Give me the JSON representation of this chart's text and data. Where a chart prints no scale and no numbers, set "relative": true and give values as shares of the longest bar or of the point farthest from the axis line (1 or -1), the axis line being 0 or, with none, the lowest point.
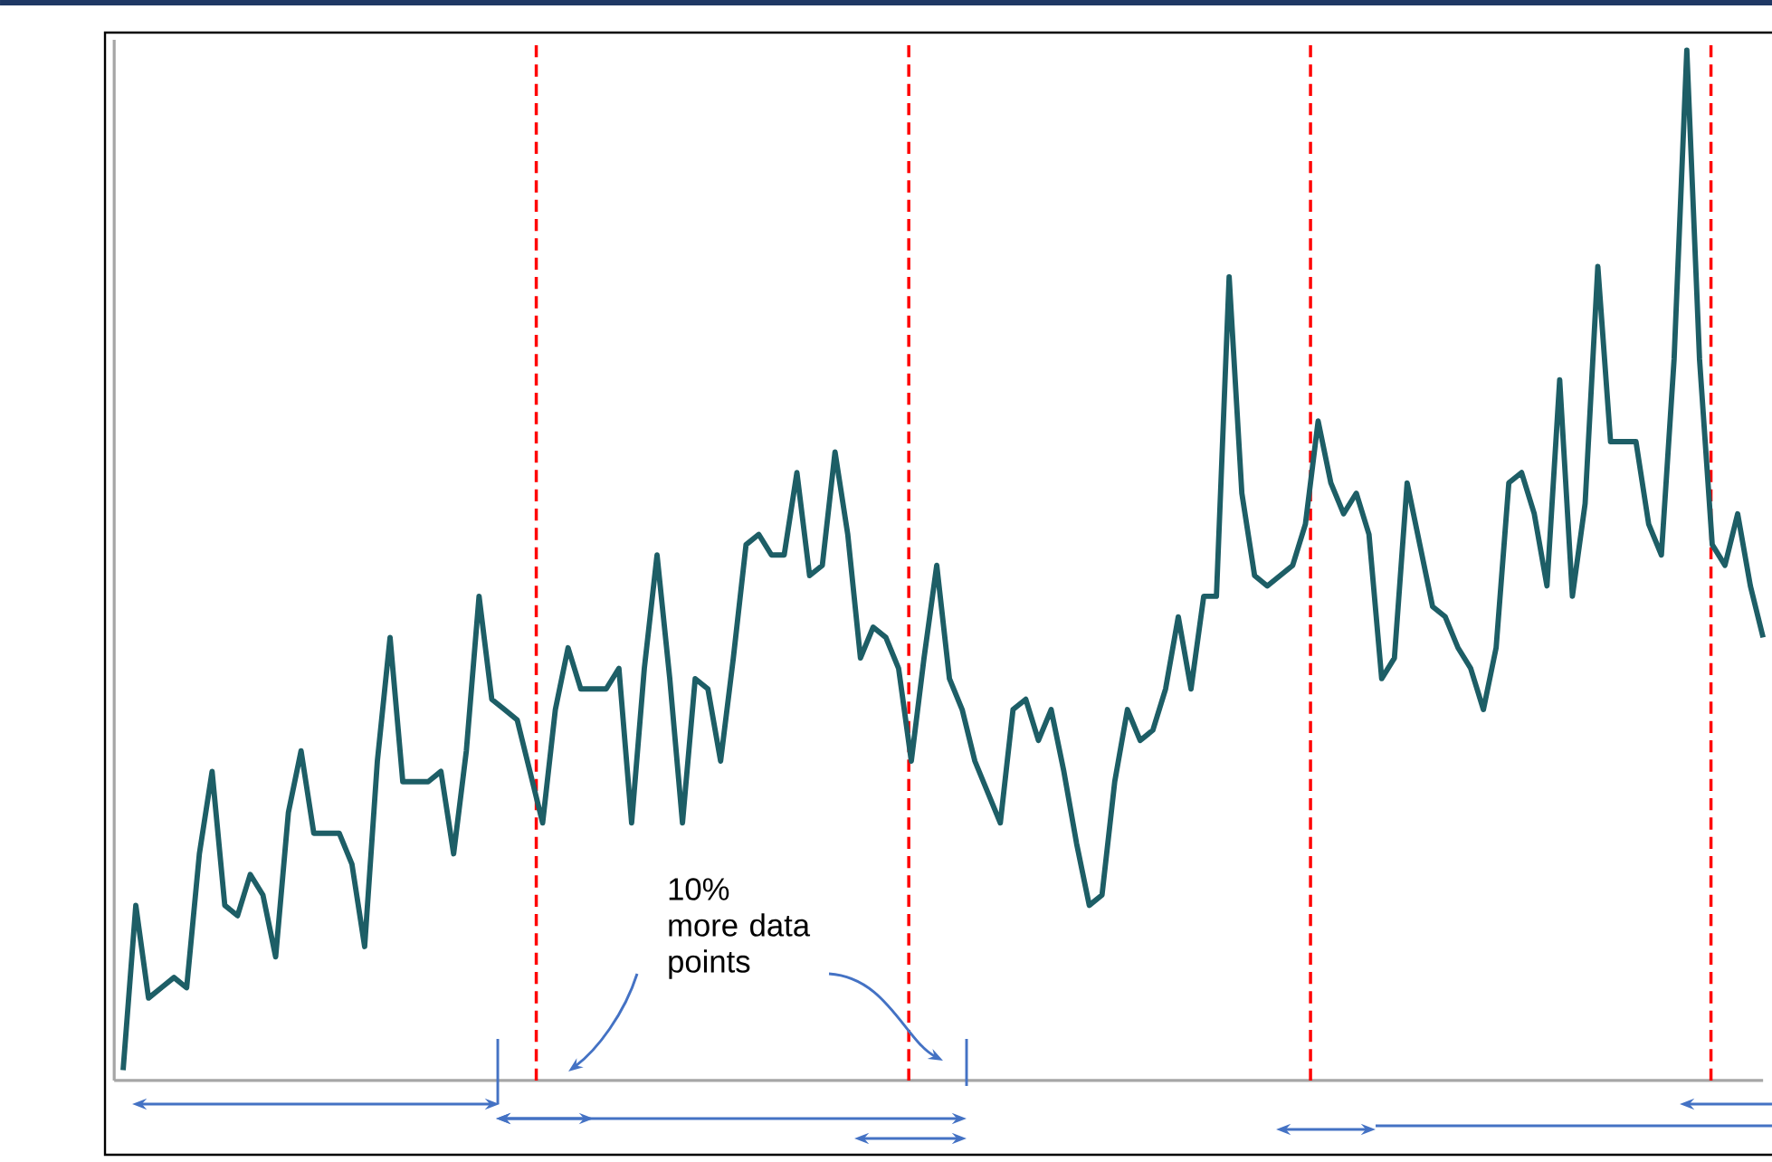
{
  "chart_data": {
    "type": "line",
    "relative": true,
    "categories": [
      null,
      null,
      null,
      null,
      null,
      null,
      null,
      null,
      null,
      null,
      null,
      null,
      null,
      null,
      null,
      null,
      null,
      null,
      null,
      null,
      null,
      null,
      null,
      null,
      null,
      null,
      null,
      null,
      null,
      null,
      null,
      null,
      null,
      null,
      null,
      null,
      null,
      null,
      null,
      null,
      null,
      null,
      null,
      null,
      null,
      null,
      null,
      null,
      null,
      null,
      null,
      null,
      null,
      null,
      null,
      null,
      null,
      null,
      null,
      null,
      null,
      null,
      null,
      null,
      null,
      null,
      null,
      null,
      null,
      null,
      null,
      null,
      null,
      null,
      null,
      null,
      null,
      null,
      null,
      null,
      null,
      null,
      null,
      null,
      null,
      null,
      null,
      null,
      null,
      null,
      null,
      null,
      null,
      null,
      null,
      null,
      null,
      null,
      null,
      null,
      null,
      null,
      null,
      null,
      null,
      null,
      null,
      null,
      null,
      null,
      null,
      null,
      null,
      null,
      null,
      null,
      null,
      null,
      null,
      null,
      null,
      null,
      null,
      null,
      null,
      null,
      null,
      null,
      null,
      null
    ],
    "series": [
      {
        "color": "#1d5e66",
        "values": [
          0.01,
          0.17,
          0.08,
          0.09,
          0.1,
          0.09,
          0.22,
          0.3,
          0.17,
          0.16,
          0.2,
          0.18,
          0.12,
          0.26,
          0.32,
          0.24,
          0.24,
          0.24,
          0.21,
          0.13,
          0.31,
          0.43,
          0.29,
          0.29,
          0.29,
          0.3,
          0.22,
          0.32,
          0.47,
          0.37,
          0.36,
          0.35,
          0.3,
          0.25,
          0.36,
          0.42,
          0.38,
          0.38,
          0.38,
          0.4,
          0.25,
          0.4,
          0.51,
          0.39,
          0.25,
          0.39,
          0.38,
          0.31,
          0.41,
          0.52,
          0.53,
          0.51,
          0.51,
          0.59,
          0.49,
          0.5,
          0.61,
          0.53,
          0.41,
          0.44,
          0.43,
          0.4,
          0.31,
          0.41,
          0.5,
          0.39,
          0.36,
          0.31,
          0.28,
          0.25,
          0.36,
          0.37,
          0.33,
          0.36,
          0.3,
          0.23,
          0.17,
          0.18,
          0.29,
          0.36,
          0.33,
          0.34,
          0.38,
          0.45,
          0.38,
          0.47,
          0.47,
          0.78,
          0.57,
          0.49,
          0.48,
          0.49,
          0.5,
          0.54,
          0.64,
          0.58,
          0.55,
          0.57,
          0.53,
          0.39,
          0.41,
          0.58,
          0.52,
          0.46,
          0.45,
          0.42,
          0.4,
          0.36,
          0.42,
          0.58,
          0.59,
          0.55,
          0.48,
          0.68,
          0.47,
          0.56,
          0.79,
          0.62,
          0.62,
          0.62,
          0.54,
          0.51,
          0.7,
          1,
          0.7,
          0.52,
          0.5,
          0.55,
          0.48,
          0.43
        ]
      }
    ],
    "annotations": [
      "10% more data points"
    ],
    "marker": "none",
    "line_style": "solid"
  }
}
